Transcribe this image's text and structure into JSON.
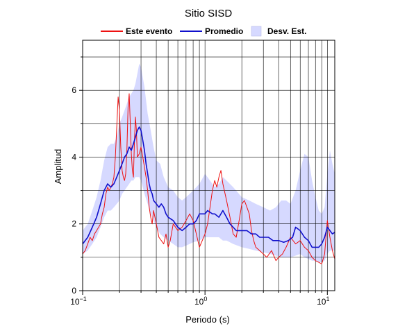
{
  "chart_data": {
    "type": "line",
    "title": "Sitio SISD",
    "xlabel": "Periodo (s)",
    "ylabel": "Amplitud",
    "xscale": "log",
    "xlim": [
      0.1,
      11.5
    ],
    "ylim": [
      0,
      7.5
    ],
    "x_ticks": [
      {
        "value": 0.1,
        "base": "10",
        "exp": "−1"
      },
      {
        "value": 1,
        "base": "10",
        "exp": "0"
      },
      {
        "value": 10,
        "base": "10",
        "exp": "1"
      }
    ],
    "y_ticks": [
      0,
      2,
      4,
      6
    ],
    "grid": true,
    "legend_position": "top",
    "legend": {
      "event": "Este evento",
      "mean": "Promedio",
      "band": "Desv. Est."
    },
    "colors": {
      "event": "#ee1111",
      "mean": "#1010cc",
      "band": "#d6d9ff"
    },
    "series": [
      {
        "name": "Este evento",
        "x": [
          0.1,
          0.105,
          0.11,
          0.115,
          0.12,
          0.125,
          0.13,
          0.135,
          0.14,
          0.145,
          0.15,
          0.155,
          0.16,
          0.165,
          0.17,
          0.175,
          0.18,
          0.185,
          0.19,
          0.195,
          0.2,
          0.205,
          0.21,
          0.215,
          0.22,
          0.225,
          0.23,
          0.235,
          0.24,
          0.245,
          0.25,
          0.255,
          0.26,
          0.265,
          0.27,
          0.275,
          0.28,
          0.29,
          0.3,
          0.31,
          0.32,
          0.33,
          0.34,
          0.35,
          0.36,
          0.37,
          0.38,
          0.4,
          0.42,
          0.44,
          0.46,
          0.48,
          0.5,
          0.52,
          0.55,
          0.6,
          0.65,
          0.7,
          0.75,
          0.8,
          0.85,
          0.9,
          0.95,
          1.0,
          1.05,
          1.1,
          1.15,
          1.2,
          1.25,
          1.3,
          1.35,
          1.4,
          1.5,
          1.6,
          1.7,
          1.8,
          1.9,
          2.0,
          2.1,
          2.2,
          2.3,
          2.4,
          2.5,
          2.6,
          2.8,
          3.0,
          3.2,
          3.5,
          3.8,
          4.0,
          4.3,
          4.6,
          5.0,
          5.5,
          6.0,
          6.5,
          7.0,
          7.5,
          8.0,
          8.5,
          9.0,
          9.5,
          10.0,
          10.5,
          11.0,
          11.5
        ],
        "values": [
          1.1,
          1.2,
          1.4,
          1.6,
          1.5,
          1.7,
          1.8,
          1.9,
          2.0,
          2.3,
          2.5,
          2.9,
          3.1,
          3.0,
          3.1,
          3.2,
          3.4,
          4.0,
          4.9,
          5.8,
          5.4,
          4.3,
          3.6,
          3.4,
          3.3,
          3.5,
          4.2,
          5.5,
          5.9,
          5.0,
          4.1,
          3.6,
          3.4,
          4.5,
          5.2,
          4.8,
          4.0,
          4.1,
          4.3,
          4.0,
          3.7,
          3.4,
          3.0,
          2.5,
          2.2,
          2.0,
          2.4,
          2.0,
          1.6,
          1.5,
          1.4,
          1.7,
          1.3,
          1.5,
          2.0,
          1.8,
          1.9,
          2.1,
          2.3,
          2.1,
          1.7,
          1.3,
          1.5,
          1.7,
          2.0,
          2.5,
          3.0,
          3.3,
          3.1,
          3.4,
          3.6,
          3.2,
          2.7,
          2.2,
          1.7,
          1.6,
          2.1,
          2.6,
          2.7,
          2.5,
          2.3,
          1.8,
          1.5,
          1.3,
          1.2,
          1.1,
          1.0,
          1.2,
          0.9,
          1.0,
          1.1,
          1.3,
          1.6,
          1.4,
          1.5,
          1.3,
          1.2,
          1.0,
          0.9,
          0.85,
          0.8,
          1.1,
          2.1,
          1.6,
          1.2,
          0.95
        ]
      },
      {
        "name": "Promedio",
        "x": [
          0.1,
          0.11,
          0.12,
          0.13,
          0.14,
          0.15,
          0.16,
          0.17,
          0.18,
          0.19,
          0.2,
          0.21,
          0.22,
          0.23,
          0.24,
          0.25,
          0.26,
          0.27,
          0.28,
          0.29,
          0.3,
          0.31,
          0.32,
          0.33,
          0.34,
          0.35,
          0.36,
          0.37,
          0.38,
          0.4,
          0.42,
          0.44,
          0.46,
          0.48,
          0.5,
          0.55,
          0.6,
          0.65,
          0.7,
          0.75,
          0.8,
          0.85,
          0.9,
          0.95,
          1.0,
          1.05,
          1.1,
          1.15,
          1.2,
          1.3,
          1.4,
          1.5,
          1.6,
          1.7,
          1.8,
          2.0,
          2.2,
          2.4,
          2.6,
          2.8,
          3.0,
          3.3,
          3.6,
          4.0,
          4.4,
          4.8,
          5.2,
          5.5,
          6.0,
          6.5,
          7.0,
          7.5,
          8.0,
          8.5,
          9.0,
          9.5,
          10.0,
          10.5,
          11.0,
          11.5
        ],
        "values": [
          1.4,
          1.6,
          1.9,
          2.2,
          2.6,
          3.0,
          3.2,
          3.1,
          3.2,
          3.4,
          3.6,
          3.8,
          4.0,
          4.1,
          4.3,
          4.2,
          4.4,
          4.6,
          4.8,
          4.9,
          4.8,
          4.5,
          4.2,
          3.8,
          3.5,
          3.2,
          3.0,
          2.9,
          2.7,
          2.6,
          2.5,
          2.6,
          2.5,
          2.3,
          2.2,
          2.1,
          1.9,
          1.8,
          1.9,
          2.0,
          2.0,
          2.1,
          2.3,
          2.3,
          2.3,
          2.4,
          2.35,
          2.3,
          2.3,
          2.2,
          2.4,
          2.2,
          2.0,
          1.9,
          1.8,
          1.8,
          1.8,
          1.7,
          1.7,
          1.6,
          1.6,
          1.6,
          1.5,
          1.5,
          1.45,
          1.5,
          1.6,
          1.9,
          1.8,
          1.6,
          1.5,
          1.3,
          1.3,
          1.3,
          1.4,
          1.6,
          1.9,
          1.8,
          1.7,
          1.75
        ]
      },
      {
        "name": "Desv. Est.",
        "x": [
          0.1,
          0.11,
          0.12,
          0.13,
          0.14,
          0.15,
          0.16,
          0.17,
          0.18,
          0.19,
          0.2,
          0.21,
          0.22,
          0.23,
          0.24,
          0.25,
          0.26,
          0.27,
          0.28,
          0.29,
          0.3,
          0.32,
          0.34,
          0.36,
          0.38,
          0.4,
          0.43,
          0.46,
          0.5,
          0.55,
          0.6,
          0.65,
          0.7,
          0.75,
          0.8,
          0.9,
          1.0,
          1.1,
          1.2,
          1.3,
          1.4,
          1.5,
          1.7,
          2.0,
          2.3,
          2.6,
          3.0,
          3.4,
          3.8,
          4.2,
          4.6,
          5.0,
          5.5,
          6.0,
          6.5,
          7.0,
          7.5,
          8.0,
          8.5,
          9.0,
          9.5,
          10.0,
          10.5,
          11.0,
          11.5
        ],
        "upper": [
          1.8,
          2.0,
          2.4,
          2.8,
          3.3,
          3.9,
          4.3,
          4.4,
          4.4,
          4.6,
          5.0,
          5.2,
          5.4,
          5.6,
          5.8,
          5.9,
          6.0,
          6.2,
          6.5,
          6.8,
          6.7,
          6.1,
          5.3,
          4.8,
          4.3,
          3.9,
          3.8,
          3.4,
          3.1,
          3.0,
          2.8,
          2.7,
          2.8,
          2.9,
          3.0,
          3.2,
          3.5,
          3.3,
          3.1,
          3.2,
          3.4,
          3.3,
          3.1,
          2.8,
          2.7,
          2.6,
          2.5,
          2.4,
          2.5,
          2.7,
          2.7,
          2.6,
          3.0,
          3.6,
          4.1,
          4.0,
          3.3,
          2.8,
          2.4,
          2.3,
          2.5,
          3.5,
          4.2,
          3.8,
          3.5
        ],
        "lower": [
          1.1,
          1.2,
          1.4,
          1.6,
          1.9,
          2.2,
          2.4,
          2.4,
          2.5,
          2.6,
          2.7,
          2.9,
          3.0,
          3.1,
          3.2,
          3.3,
          3.3,
          3.4,
          3.4,
          3.4,
          3.3,
          2.9,
          2.6,
          2.3,
          2.1,
          1.9,
          1.7,
          1.6,
          1.5,
          1.4,
          1.3,
          1.3,
          1.35,
          1.4,
          1.45,
          1.5,
          1.6,
          1.6,
          1.6,
          1.6,
          1.5,
          1.5,
          1.4,
          1.3,
          1.25,
          1.2,
          1.15,
          1.1,
          1.05,
          1.0,
          1.0,
          1.0,
          1.05,
          1.1,
          1.0,
          0.95,
          0.9,
          0.9,
          0.85,
          0.85,
          0.9,
          1.1,
          1.2,
          1.2,
          1.2
        ]
      }
    ]
  }
}
